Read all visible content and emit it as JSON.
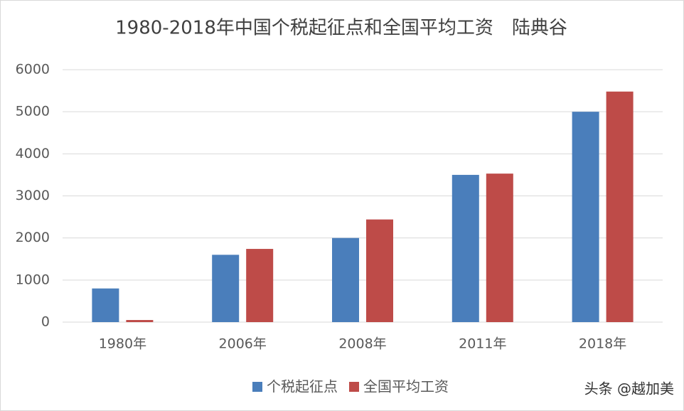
{
  "chart_data": {
    "type": "bar",
    "title": "1980-2018年中国个税起征点和全国平均工资　陆典谷",
    "categories": [
      "1980年",
      "2006年",
      "2008年",
      "2011年",
      "2018年"
    ],
    "series": [
      {
        "name": "个税起征点",
        "color": "#4a7ebb",
        "values": [
          800,
          1600,
          2000,
          3500,
          5000
        ]
      },
      {
        "name": "全国平均工资",
        "color": "#be4b48",
        "values": [
          50,
          1740,
          2440,
          3530,
          5480
        ]
      }
    ],
    "ylim": [
      0,
      6000
    ],
    "yticks": [
      0,
      1000,
      2000,
      3000,
      4000,
      5000,
      6000
    ],
    "grid": true,
    "legend": "bottom",
    "watermark": "头条 @越加美"
  }
}
